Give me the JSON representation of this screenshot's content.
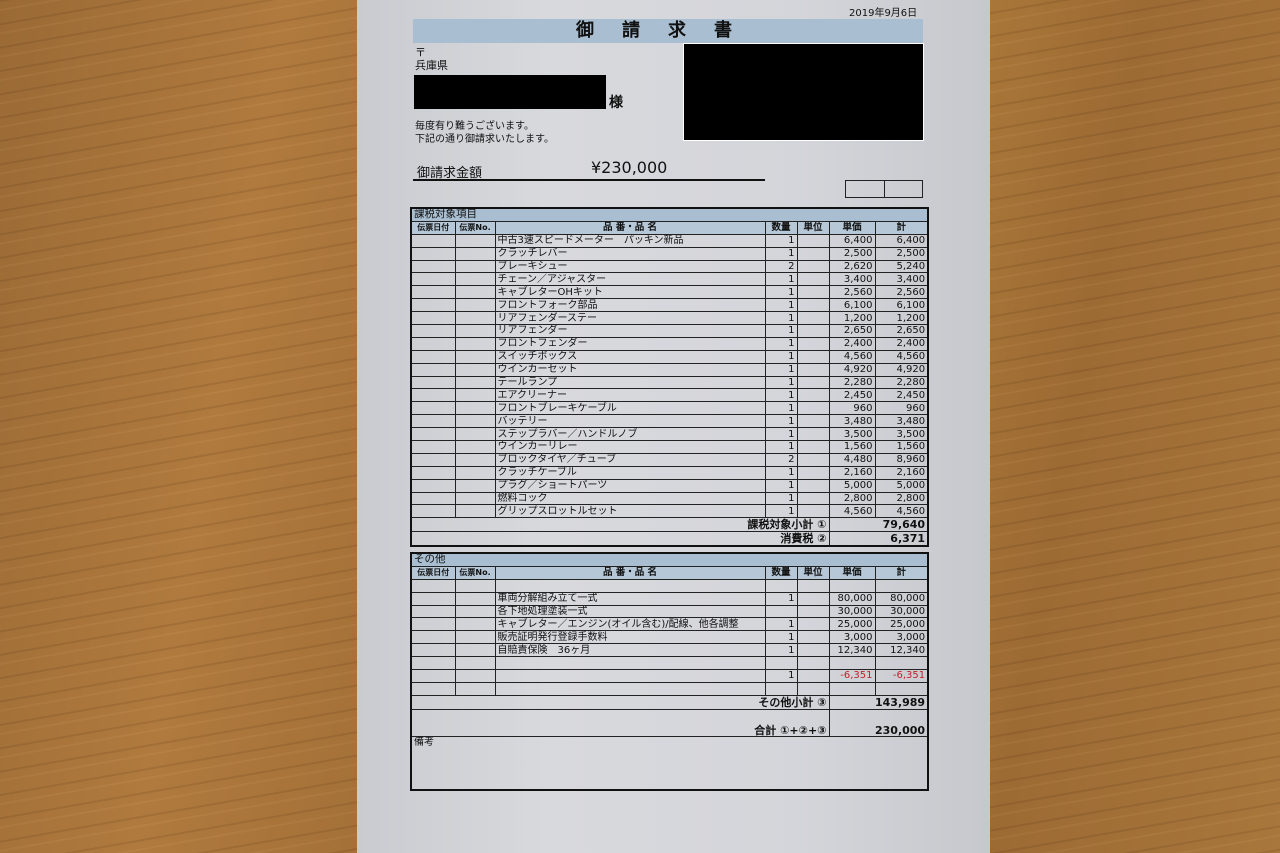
{
  "document": {
    "date": "2019年9月6日",
    "title": "御請求書",
    "postal_mark": "〒",
    "prefecture": "兵庫県",
    "honorific": "様",
    "greeting": [
      "毎度有り難うございます。",
      "下記の通り御請求いたします。"
    ],
    "amount_label": "御請求金額",
    "amount": "¥230,000"
  },
  "columns": [
    "伝票日付",
    "伝票No.",
    "品 番・品 名",
    "数量",
    "単位",
    "単価",
    "計"
  ],
  "taxable": {
    "section_label": "課税対象項目",
    "rows": [
      {
        "name": "中古3速スピードメーター　パッキン新品",
        "qty": "1",
        "unit": "",
        "price": "6,400",
        "total": "6,400"
      },
      {
        "name": "クラッチレバー",
        "qty": "1",
        "unit": "",
        "price": "2,500",
        "total": "2,500"
      },
      {
        "name": "ブレーキシュー",
        "qty": "2",
        "unit": "",
        "price": "2,620",
        "total": "5,240"
      },
      {
        "name": "チェーン／アジャスター",
        "qty": "1",
        "unit": "",
        "price": "3,400",
        "total": "3,400"
      },
      {
        "name": "キャブレターOHキット",
        "qty": "1",
        "unit": "",
        "price": "2,560",
        "total": "2,560"
      },
      {
        "name": "フロントフォーク部品",
        "qty": "1",
        "unit": "",
        "price": "6,100",
        "total": "6,100"
      },
      {
        "name": "リアフェンダーステー",
        "qty": "1",
        "unit": "",
        "price": "1,200",
        "total": "1,200"
      },
      {
        "name": "リアフェンダー",
        "qty": "1",
        "unit": "",
        "price": "2,650",
        "total": "2,650"
      },
      {
        "name": "フロントフェンダー",
        "qty": "1",
        "unit": "",
        "price": "2,400",
        "total": "2,400"
      },
      {
        "name": "スイッチボックス",
        "qty": "1",
        "unit": "",
        "price": "4,560",
        "total": "4,560"
      },
      {
        "name": "ウインカーセット",
        "qty": "1",
        "unit": "",
        "price": "4,920",
        "total": "4,920"
      },
      {
        "name": "テールランプ",
        "qty": "1",
        "unit": "",
        "price": "2,280",
        "total": "2,280"
      },
      {
        "name": "エアクリーナー",
        "qty": "1",
        "unit": "",
        "price": "2,450",
        "total": "2,450"
      },
      {
        "name": "フロントブレーキケーブル",
        "qty": "1",
        "unit": "",
        "price": "960",
        "total": "960"
      },
      {
        "name": "バッテリー",
        "qty": "1",
        "unit": "",
        "price": "3,480",
        "total": "3,480"
      },
      {
        "name": "ステップラバー／ハンドルノブ",
        "qty": "1",
        "unit": "",
        "price": "3,500",
        "total": "3,500"
      },
      {
        "name": "ウインカーリレー",
        "qty": "1",
        "unit": "",
        "price": "1,560",
        "total": "1,560"
      },
      {
        "name": "ブロックタイヤ／チューブ",
        "qty": "2",
        "unit": "",
        "price": "4,480",
        "total": "8,960"
      },
      {
        "name": "クラッチケーブル",
        "qty": "1",
        "unit": "",
        "price": "2,160",
        "total": "2,160"
      },
      {
        "name": "プラグ／ショートパーツ",
        "qty": "1",
        "unit": "",
        "price": "5,000",
        "total": "5,000"
      },
      {
        "name": "燃料コック",
        "qty": "1",
        "unit": "",
        "price": "2,800",
        "total": "2,800"
      },
      {
        "name": "グリップスロットルセット",
        "qty": "1",
        "unit": "",
        "price": "4,560",
        "total": "4,560"
      }
    ],
    "subtotal_label": "課税対象小計 ①",
    "subtotal": "79,640",
    "tax_label": "消費税 ②",
    "tax": "6,371"
  },
  "other": {
    "section_label": "その他",
    "rows": [
      {
        "name": "",
        "qty": "",
        "unit": "",
        "price": "",
        "total": ""
      },
      {
        "name": "車両分解組み立て一式",
        "qty": "1",
        "unit": "",
        "price": "80,000",
        "total": "80,000"
      },
      {
        "name": "各下地処理塗装一式",
        "qty": "",
        "unit": "",
        "price": "30,000",
        "total": "30,000"
      },
      {
        "name": "キャブレター／エンジン(オイル含む)/配線、他各調整",
        "qty": "1",
        "unit": "",
        "price": "25,000",
        "total": "25,000"
      },
      {
        "name": "販売証明発行登録手数料",
        "qty": "1",
        "unit": "",
        "price": "3,000",
        "total": "3,000"
      },
      {
        "name": "自賠責保険　36ヶ月",
        "qty": "1",
        "unit": "",
        "price": "12,340",
        "total": "12,340"
      },
      {
        "name": "",
        "qty": "",
        "unit": "",
        "price": "",
        "total": ""
      },
      {
        "name": "",
        "qty": "1",
        "unit": "",
        "price": "-6,351",
        "total": "-6,351",
        "negative": true
      },
      {
        "name": "",
        "qty": "",
        "unit": "",
        "price": "",
        "total": ""
      }
    ],
    "subtotal_label": "その他小計 ③",
    "subtotal": "143,989",
    "grand_total_label": "合計 ①+②+③",
    "grand_total": "230,000"
  },
  "remarks_label": "備考",
  "colors": {
    "header_blue": "#a9bfd1",
    "negative_red": "#c0212a"
  }
}
